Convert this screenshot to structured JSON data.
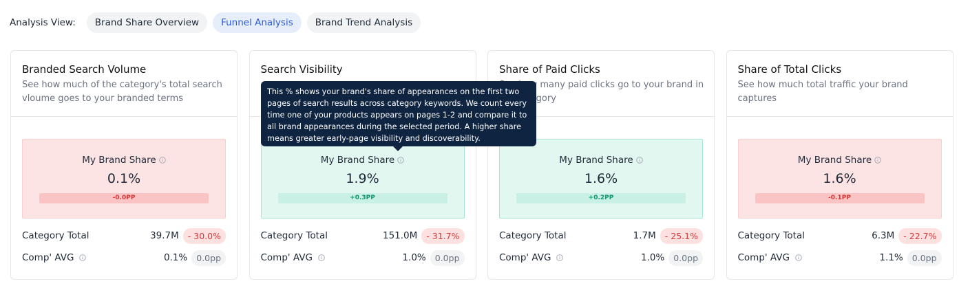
{
  "header": {
    "label": "Analysis View:",
    "tabs": [
      "Brand Share Overview",
      "Funnel Analysis",
      "Brand Trend Analysis"
    ],
    "active_tab": 1
  },
  "cards": [
    {
      "title": "Branded Search Volume",
      "description": "See how much of the category's total search vloume goes to your branded terms",
      "share_label": "My Brand Share",
      "share_value": "0.1%",
      "share_change": "-0.0PP",
      "trend": "negative",
      "category_label": "Category Total",
      "category_value": "39.7M",
      "category_change": "- 30.0%",
      "comp_label": "Comp' AVG",
      "comp_value": "0.1%",
      "comp_change": "0.0pp"
    },
    {
      "title": "Search Visibility",
      "share_label": "My Brand Share",
      "share_value": "1.9%",
      "share_change": "+0.3PP",
      "trend": "positive",
      "category_label": "Category Total",
      "category_value": "151.0M",
      "category_change": "- 31.7%",
      "comp_label": "Comp' AVG",
      "comp_value": "1.0%",
      "comp_change": "0.0pp"
    },
    {
      "title": "Share of Paid Clicks",
      "description": "See how many paid clicks go to your brand in the category",
      "share_label": "My Brand Share",
      "share_value": "1.6%",
      "share_change": "+0.2PP",
      "trend": "positive",
      "category_label": "Category Total",
      "category_value": "1.7M",
      "category_change": "- 25.1%",
      "comp_label": "Comp' AVG",
      "comp_value": "1.0%",
      "comp_change": "0.0pp"
    },
    {
      "title": "Share of Total Clicks",
      "description": "See how much total traffic your brand captures",
      "share_label": "My Brand Share",
      "share_value": "1.6%",
      "share_change": "-0.1PP",
      "trend": "negative",
      "category_label": "Category Total",
      "category_value": "6.3M",
      "category_change": "- 22.7%",
      "comp_label": "Comp' AVG",
      "comp_value": "1.1%",
      "comp_change": "0.0pp"
    }
  ],
  "tooltip": {
    "card": 1,
    "text": "This % shows your brand's share of appearances on the first two pages of search results across category keywords. We count every time one of your products appears on pages 1-2 and compare it to all brand appearances during the selected period. A higher share means greater early-page visibility and discoverability."
  }
}
